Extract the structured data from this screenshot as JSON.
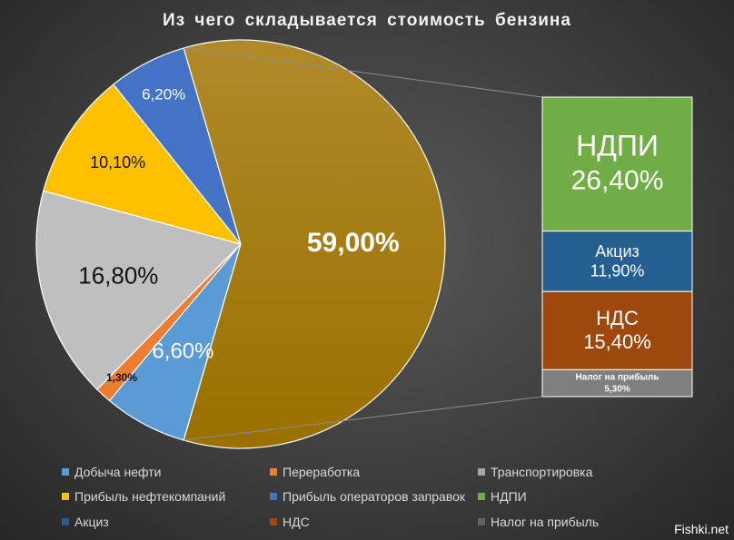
{
  "chart_data": {
    "type": "pie",
    "variant": "bar-of-pie",
    "title": "Из чего складывается  стоимость  бензина",
    "main_pie": [
      {
        "name": "Добыча нефти",
        "label": "6,60%",
        "value": 6.6,
        "color": "#5b9bd5"
      },
      {
        "name": "Переработка",
        "label": "1,30%",
        "value": 1.3,
        "color": "#ed7d31"
      },
      {
        "name": "Транспортировка",
        "label": "16,80%",
        "value": 16.8,
        "color": "#bfbfbf"
      },
      {
        "name": "Прибыль нефтекомпаний",
        "label": "10,10%",
        "value": 10.1,
        "color": "#ffc000"
      },
      {
        "name": "Прибыль операторов  заправок",
        "label": "6,20%",
        "value": 6.2,
        "color": "#4472c4"
      },
      {
        "name": "",
        "label": "59,00%",
        "value": 59.0,
        "color": "#a67c00"
      }
    ],
    "secondary_bar": [
      {
        "name": "НДПИ",
        "label": "26,40%",
        "value": 26.4,
        "color": "#70ad47"
      },
      {
        "name": "Акциз",
        "label": "11,90%",
        "value": 11.9,
        "color": "#255e91"
      },
      {
        "name": "НДС",
        "label": "15,40%",
        "value": 15.4,
        "color": "#9e480e"
      },
      {
        "name": "Налог на прибыль",
        "label": "5,30%",
        "value": 5.3,
        "color": "#7f7f7f"
      }
    ],
    "legend": [
      {
        "label": "Добыча нефти",
        "color": "#5b9bd5"
      },
      {
        "label": "Переработка",
        "color": "#ed7d31"
      },
      {
        "label": "Транспортировка",
        "color": "#a5a5a5"
      },
      {
        "label": "Прибыль нефтекомпаний",
        "color": "#ffc000"
      },
      {
        "label": "Прибыль операторов  заправок",
        "color": "#4472c4"
      },
      {
        "label": "НДПИ",
        "color": "#70ad47"
      },
      {
        "label": "Акциз",
        "color": "#255e91"
      },
      {
        "label": "НДС",
        "color": "#9e480e"
      },
      {
        "label": "Налог на прибыль",
        "color": "#636363"
      }
    ],
    "legend_position": "bottom"
  },
  "watermark": "Fishki.net"
}
